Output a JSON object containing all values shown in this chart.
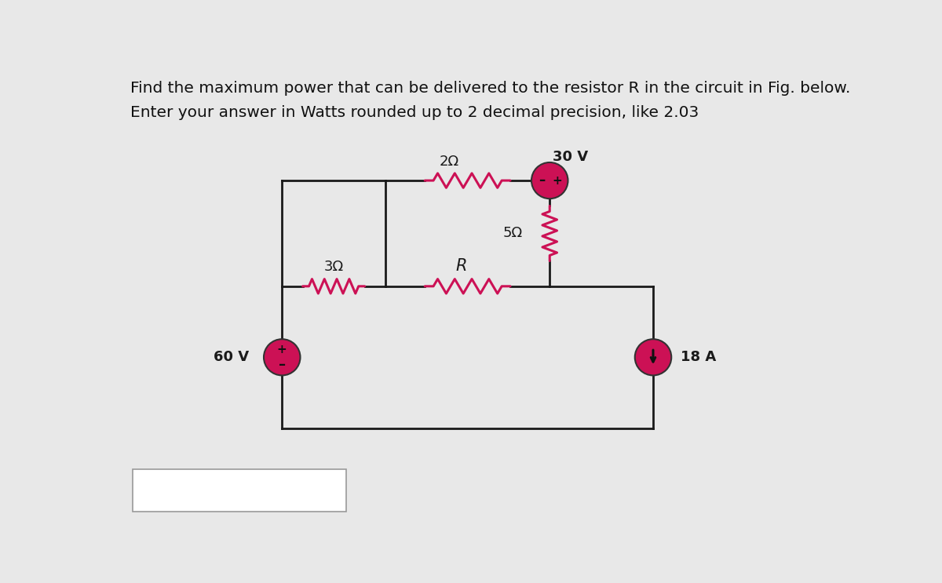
{
  "title_line1": "Find the maximum power that can be delivered to the resistor R in the circuit in Fig. below.",
  "title_line2": "Enter your answer in Watts rounded up to 2 decimal precision, like 2.03",
  "bg_color": "#e8e8e8",
  "wire_color": "#1a1a1a",
  "resistor_color": "#cc1155",
  "source_fill": "#cc1155",
  "label_60V": "60 V",
  "label_30V": "30 V",
  "label_18A": "18 A",
  "label_2ohm": "2Ω",
  "label_3ohm": "3Ω",
  "label_5ohm": "5Ω",
  "label_R": "R",
  "font_size_title": 14.5,
  "font_size_labels": 13,
  "font_size_source": 11
}
